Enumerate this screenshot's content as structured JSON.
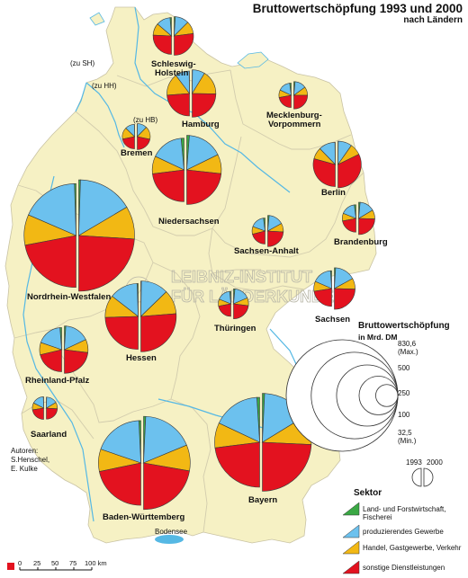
{
  "title": "Bruttowertschöpfung 1993 und 2000",
  "subtitle": "nach Ländern",
  "watermark": [
    "LEIBNIZ-INSTITUT",
    "FÜR LÄNDERKUNDE"
  ],
  "notes": {
    "zu_sh": "(zu SH)",
    "zu_hh": "(zu HH)",
    "zu_hb": "(zu HB)",
    "bodensee": "Bodensee"
  },
  "authors": {
    "label": "Autoren:",
    "names": [
      "S.Henschel,",
      "E. Kulke"
    ]
  },
  "legend_size": {
    "title": "Bruttowertschöpfung",
    "unit": "in Mrd. DM",
    "levels": [
      {
        "label": "830,6",
        "sub": "(Max.)",
        "value": 830.6
      },
      {
        "label": "500",
        "sub": "",
        "value": 500
      },
      {
        "label": "250",
        "sub": "",
        "value": 250
      },
      {
        "label": "100",
        "sub": "",
        "value": 100
      },
      {
        "label": "32,5",
        "sub": "(Min.)",
        "value": 32.5
      }
    ],
    "years": [
      "1993",
      "2000"
    ]
  },
  "legend_sektor": {
    "title": "Sektor",
    "items": [
      {
        "label": "Land- und Forstwirtschaft, Fischerei",
        "color": "#3aa844"
      },
      {
        "label": "produzierendes Gewerbe",
        "color": "#6cc1ee"
      },
      {
        "label": "Handel, Gastgewerbe, Verkehr",
        "color": "#f2b814"
      },
      {
        "label": "sonstige Dienstleistungen",
        "color": "#e3121f"
      }
    ]
  },
  "scale": {
    "ticks": [
      "0",
      "25",
      "50",
      "75",
      "100 km"
    ]
  },
  "colors": {
    "land": "#f6f1c4",
    "outside": "#ffffff",
    "water": "#55b8e4",
    "border": "#c9c3a4"
  },
  "chart_data": {
    "type": "pie",
    "note": "Semicircle pairs per Land: left half = 1993, right half = 2000; size proportional to Bruttowertschöpfung (Mrd. DM); shares in percent estimated from the graphic (order: Land-/Forstwirtschaft, produzierendes Gewerbe, Handel/Gastgewerbe/Verkehr, sonstige Dienstleistungen).",
    "series": [
      {
        "name": "Schleswig-Holstein",
        "v1993": 90,
        "v2000": 100,
        "shares1993": [
          2.5,
          25,
          21,
          51.5
        ],
        "shares2000": [
          2,
          23,
          21,
          54
        ]
      },
      {
        "name": "Hamburg",
        "v1993": 135,
        "v2000": 150,
        "shares1993": [
          0.5,
          20,
          32,
          47.5
        ],
        "shares2000": [
          0.5,
          17,
          33,
          49.5
        ]
      },
      {
        "name": "Mecklenburg-Vorpommern",
        "v1993": 40,
        "v2000": 50,
        "shares1993": [
          4,
          32,
          20,
          44
        ],
        "shares2000": [
          3,
          27,
          20,
          50
        ]
      },
      {
        "name": "Bremen",
        "v1993": 40,
        "v2000": 45,
        "shares1993": [
          0.5,
          25,
          31,
          43.5
        ],
        "shares2000": [
          0.5,
          24,
          32,
          43.5
        ]
      },
      {
        "name": "Niedersachsen",
        "v1993": 270,
        "v2000": 320,
        "shares1993": [
          3,
          33,
          18,
          46
        ],
        "shares2000": [
          2.5,
          33,
          18,
          46.5
        ]
      },
      {
        "name": "Berlin",
        "v1993": 130,
        "v2000": 145,
        "shares1993": [
          0.5,
          24,
          17,
          58.5
        ],
        "shares2000": [
          0.5,
          19,
          16,
          64.5
        ]
      },
      {
        "name": "Sachsen-Anhalt",
        "v1993": 45,
        "v2000": 65,
        "shares1993": [
          4,
          35,
          19,
          42
        ],
        "shares2000": [
          3,
          31,
          18,
          48
        ]
      },
      {
        "name": "Brandenburg",
        "v1993": 50,
        "v2000": 70,
        "shares1993": [
          4,
          34,
          18,
          44
        ],
        "shares2000": [
          3,
          30,
          18,
          49
        ]
      },
      {
        "name": "Nordrhein-Westfalen",
        "v1993": 720,
        "v2000": 830.6,
        "shares1993": [
          1,
          36,
          19,
          44
        ],
        "shares2000": [
          1,
          32,
          19,
          48
        ]
      },
      {
        "name": "Sachsen",
        "v1993": 85,
        "v2000": 115,
        "shares1993": [
          2,
          35,
          18,
          45
        ],
        "shares2000": [
          2,
          32,
          17,
          49
        ]
      },
      {
        "name": "Thüringen",
        "v1993": 42,
        "v2000": 60,
        "shares1993": [
          3,
          35,
          18,
          44
        ],
        "shares2000": [
          3,
          34,
          17,
          46
        ]
      },
      {
        "name": "Hessen",
        "v1993": 290,
        "v2000": 335,
        "shares1993": [
          1,
          28,
          22,
          49
        ],
        "shares2000": [
          0.5,
          25,
          22,
          52.5
        ]
      },
      {
        "name": "Rheinland-Pfalz",
        "v1993": 130,
        "v2000": 150,
        "shares1993": [
          2.5,
          37,
          18,
          42.5
        ],
        "shares2000": [
          2,
          34,
          18,
          46
        ]
      },
      {
        "name": "Saarland",
        "v1993": 34,
        "v2000": 32.5,
        "shares1993": [
          1,
          34,
          20,
          45
        ],
        "shares2000": [
          1,
          32,
          19,
          48
        ]
      },
      {
        "name": "Baden-Württemberg",
        "v1993": 480,
        "v2000": 580,
        "shares1993": [
          1.5,
          38,
          17,
          43.5
        ],
        "shares2000": [
          1.5,
          36,
          18,
          44.5
        ]
      },
      {
        "name": "Bayern",
        "v1993": 540,
        "v2000": 640,
        "shares1993": [
          2,
          34,
          18,
          46
        ],
        "shares2000": [
          1.5,
          31,
          19,
          48.5
        ]
      }
    ]
  }
}
